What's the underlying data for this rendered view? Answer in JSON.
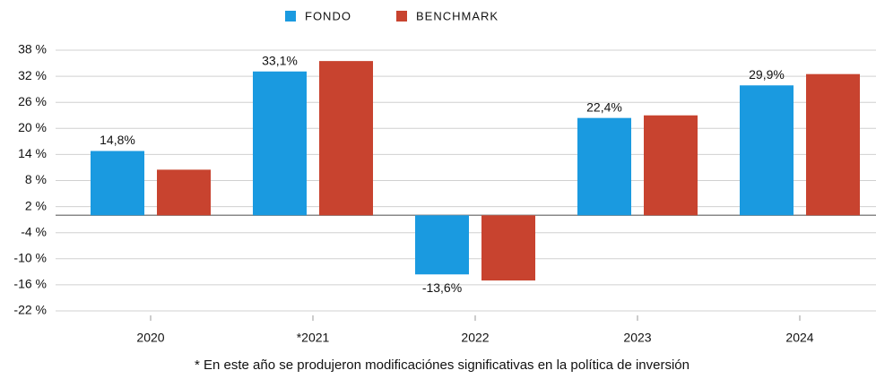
{
  "chart_data": {
    "type": "bar",
    "categories": [
      "2020",
      "*2021",
      "2022",
      "2023",
      "2024"
    ],
    "series": [
      {
        "name": "FONDO",
        "color": "#1a9ae0",
        "values": [
          14.8,
          33.1,
          -13.6,
          22.4,
          29.9
        ],
        "value_labels": [
          "14,8%",
          "33,1%",
          "-13,6%",
          "22,4%",
          "29,9%"
        ]
      },
      {
        "name": "BENCHMARK",
        "color": "#c8432f",
        "values": [
          10.5,
          35.5,
          -15,
          23,
          32.5
        ]
      }
    ],
    "ylim": [
      -22,
      38
    ],
    "yticks": [
      {
        "value": 38,
        "label": "38 %"
      },
      {
        "value": 32,
        "label": "32 %"
      },
      {
        "value": 26,
        "label": "26 %"
      },
      {
        "value": 20,
        "label": "20 %"
      },
      {
        "value": 14,
        "label": "14 %"
      },
      {
        "value": 8,
        "label": "8 %"
      },
      {
        "value": 2,
        "label": "2 %"
      },
      {
        "value": -4,
        "label": "-4 %"
      },
      {
        "value": -10,
        "label": "-10 %"
      },
      {
        "value": -16,
        "label": "-16 %"
      },
      {
        "value": -22,
        "label": "-22 %"
      }
    ],
    "grid": true,
    "legend": "top",
    "footnote": "* En este año se produjeron modificaciónes significativas en la política de inversión"
  }
}
